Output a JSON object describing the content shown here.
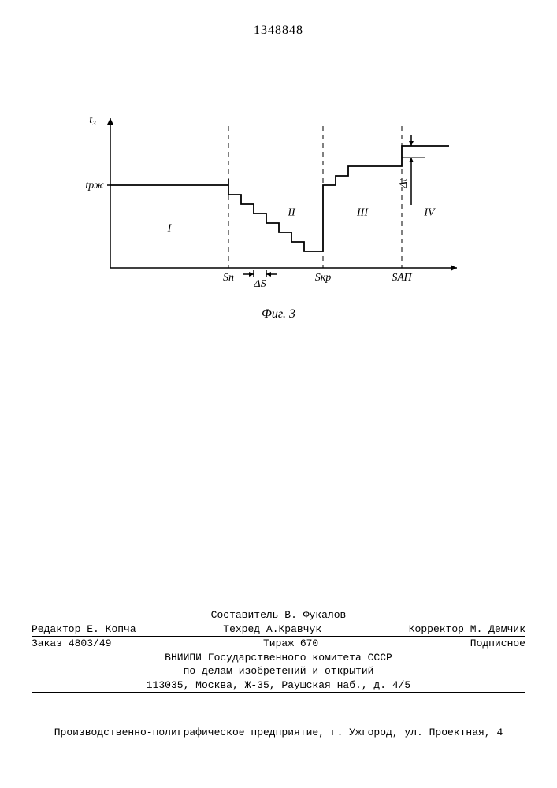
{
  "document_number": "1348848",
  "figure": {
    "caption": "Фиг. 3",
    "y_axis_label": "t₃",
    "y_tick_label": "tрж",
    "x_ticks": [
      "Sп",
      "Sкр",
      "SАП"
    ],
    "delta_s_label": "ΔS",
    "delta_t_label": "Δt",
    "region_labels": [
      "I",
      "II",
      "III",
      "IV"
    ],
    "colors": {
      "line": "#000000",
      "background": "#ffffff",
      "dash": "#000000"
    },
    "plot": {
      "axis_x0": 40,
      "axis_x1": 480,
      "axis_y0": 200,
      "axis_y1": 10,
      "trm_y": 95,
      "sp_x": 190,
      "skr_x": 310,
      "sap_x": 410,
      "min_y": 190,
      "step_w": 16,
      "step_h": 12,
      "region3_top_y": 60,
      "dt_top_y": 45,
      "dt_bracket_x": 422
    }
  },
  "credits": {
    "compiler": "Составитель В. Фукалов",
    "editor_label": "Редактор",
    "editor": "Е. Копча",
    "techred_label": "Техред",
    "techred": "А.Кравчук",
    "corrector_label": "Корректор",
    "corrector": "М. Демчик",
    "order_label": "Заказ",
    "order": "4803/49",
    "tirazh_label": "Тираж",
    "tirazh": "670",
    "signed": "Подписное",
    "org1": "ВНИИПИ Государственного комитета СССР",
    "org2": "по делам изобретений и открытий",
    "addr": "113035, Москва, Ж-35, Раушская наб., д. 4/5"
  },
  "footer": "Производственно-полиграфическое предприятие, г. Ужгород, ул. Проектная, 4"
}
